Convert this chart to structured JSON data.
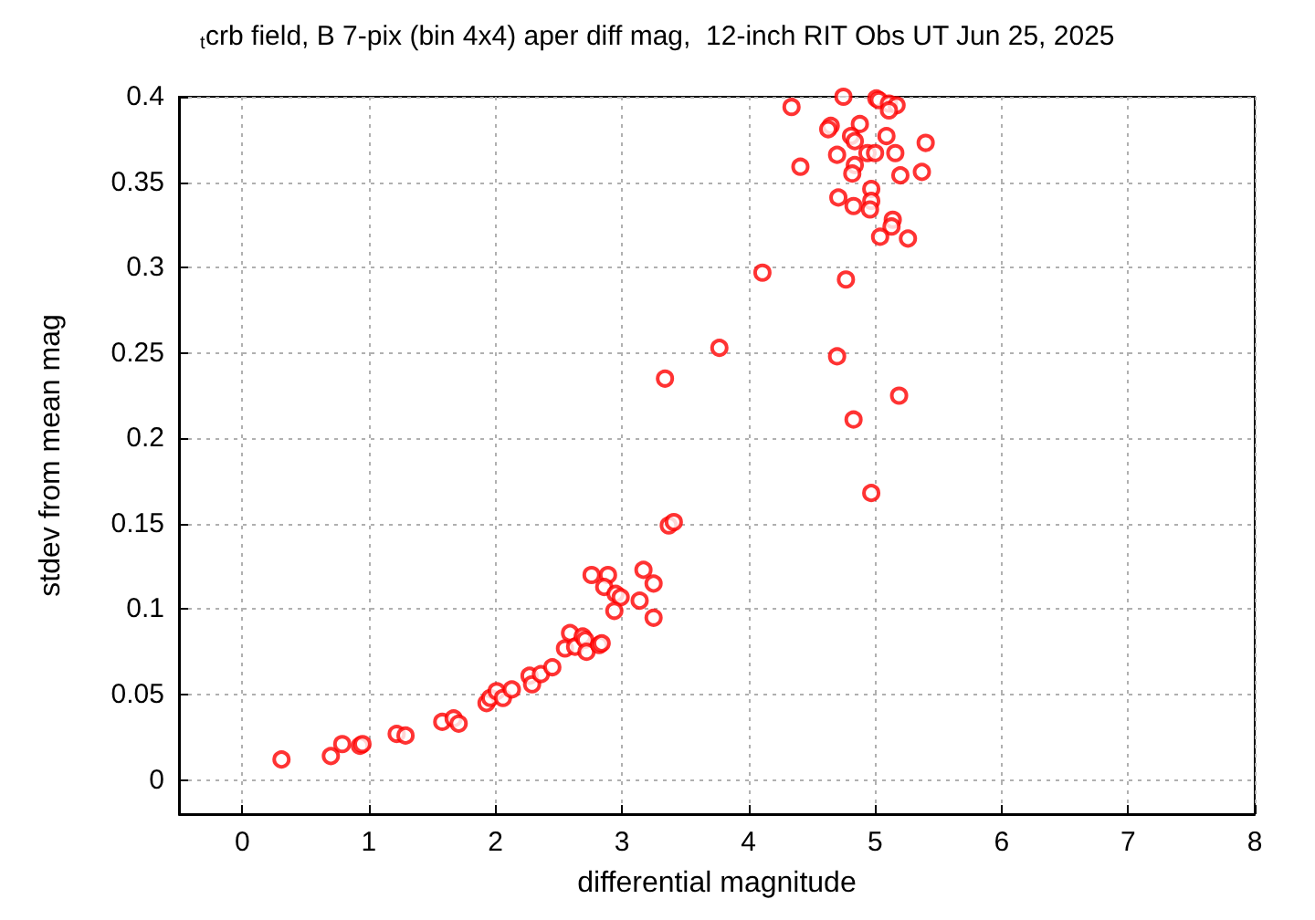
{
  "chart_data": {
    "type": "scatter",
    "title": "$_{t}$crb field, B 7-pix (bin 4x4) aper diff mag,  12-inch RIT Obs UT Jun 25, 2025",
    "xlabel": "differential magnitude",
    "ylabel": "stdev from mean mag",
    "x": [
      0.31,
      0.7,
      0.79,
      0.93,
      0.95,
      1.22,
      1.29,
      1.58,
      1.67,
      1.71,
      1.93,
      1.96,
      2.01,
      2.06,
      2.13,
      2.27,
      2.29,
      2.36,
      2.45,
      2.55,
      2.59,
      2.63,
      2.69,
      2.71,
      2.72,
      2.82,
      2.84,
      2.76,
      2.89,
      2.86,
      2.95,
      2.99,
      2.94,
      3.17,
      3.25,
      3.14,
      3.25,
      4.11,
      3.77,
      3.34,
      3.37,
      3.41,
      4.34,
      4.75,
      5.01,
      5.03,
      5.11,
      5.17,
      5.11,
      4.65,
      4.63,
      4.88,
      4.81,
      4.84,
      5.09,
      5.4,
      4.7,
      4.94,
      5.0,
      5.16,
      4.41,
      4.84,
      4.82,
      5.2,
      5.37,
      4.97,
      4.71,
      4.83,
      4.97,
      4.96,
      5.14,
      5.13,
      5.04,
      5.26,
      4.77,
      4.7,
      5.19,
      4.83,
      4.97
    ],
    "values": [
      0.012,
      0.014,
      0.021,
      0.02,
      0.021,
      0.027,
      0.026,
      0.034,
      0.036,
      0.033,
      0.045,
      0.048,
      0.052,
      0.048,
      0.053,
      0.061,
      0.056,
      0.062,
      0.066,
      0.077,
      0.086,
      0.078,
      0.084,
      0.082,
      0.075,
      0.079,
      0.08,
      0.12,
      0.12,
      0.113,
      0.109,
      0.107,
      0.099,
      0.123,
      0.115,
      0.105,
      0.095,
      0.297,
      0.253,
      0.235,
      0.149,
      0.151,
      0.394,
      0.4,
      0.399,
      0.398,
      0.396,
      0.395,
      0.392,
      0.383,
      0.381,
      0.384,
      0.377,
      0.374,
      0.377,
      0.373,
      0.366,
      0.367,
      0.367,
      0.367,
      0.359,
      0.36,
      0.355,
      0.354,
      0.356,
      0.346,
      0.341,
      0.336,
      0.339,
      0.334,
      0.328,
      0.324,
      0.318,
      0.317,
      0.293,
      0.248,
      0.225,
      0.211,
      0.168
    ],
    "color": "#ff0000",
    "marker": "circle",
    "grid": true,
    "xlim": [
      -0.5,
      8
    ],
    "xticks": [
      0,
      1,
      2,
      3,
      4,
      5,
      6,
      7,
      8
    ],
    "ylim": [
      -0.02,
      0.4
    ],
    "yticks": [
      0,
      0.05,
      0.1,
      0.15,
      0.2,
      0.25,
      0.3,
      0.35,
      0.4
    ]
  }
}
